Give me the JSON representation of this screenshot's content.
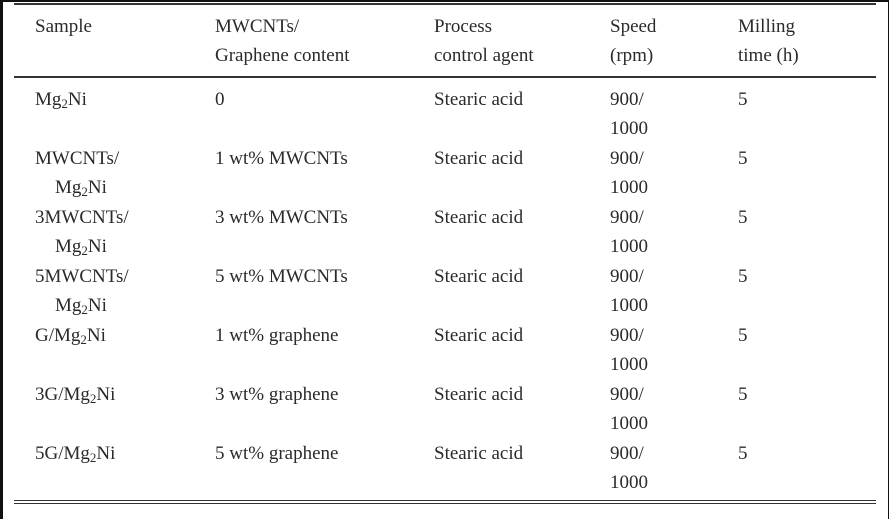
{
  "headers": [
    [
      "Sample"
    ],
    [
      "MWCNTs/",
      "Graphene content"
    ],
    [
      "Process",
      "control agent"
    ],
    [
      "Speed",
      "(rpm)"
    ],
    [
      "Milling",
      "time (h)"
    ]
  ],
  "rows": [
    {
      "sample": {
        "line1": "",
        "pre": "Mg",
        "sub": "2",
        "post": "Ni"
      },
      "content": "0",
      "agent": "Stearic acid",
      "speed": [
        "900/",
        "1000"
      ],
      "time": "5"
    },
    {
      "sample": {
        "line1": "MWCNTs/",
        "pre": "Mg",
        "sub": "2",
        "post": "Ni"
      },
      "content": "1 wt% MWCNTs",
      "agent": "Stearic acid",
      "speed": [
        "900/",
        "1000"
      ],
      "time": "5"
    },
    {
      "sample": {
        "line1": "3MWCNTs/",
        "pre": "Mg",
        "sub": "2",
        "post": "Ni"
      },
      "content": "3 wt% MWCNTs",
      "agent": "Stearic acid",
      "speed": [
        "900/",
        "1000"
      ],
      "time": "5"
    },
    {
      "sample": {
        "line1": "5MWCNTs/",
        "pre": "Mg",
        "sub": "2",
        "post": "Ni"
      },
      "content": "5 wt% MWCNTs",
      "agent": "Stearic acid",
      "speed": [
        "900/",
        "1000"
      ],
      "time": "5"
    },
    {
      "sample": {
        "line1": "",
        "pre": "G/Mg",
        "sub": "2",
        "post": "Ni"
      },
      "content": "1 wt% graphene",
      "agent": "Stearic acid",
      "speed": [
        "900/",
        "1000"
      ],
      "time": "5"
    },
    {
      "sample": {
        "line1": "",
        "pre": "3G/Mg",
        "sub": "2",
        "post": "Ni"
      },
      "content": "3 wt% graphene",
      "agent": "Stearic acid",
      "speed": [
        "900/",
        "1000"
      ],
      "time": "5"
    },
    {
      "sample": {
        "line1": "",
        "pre": "5G/Mg",
        "sub": "2",
        "post": "Ni"
      },
      "content": "5 wt% graphene",
      "agent": "Stearic acid",
      "speed": [
        "900/",
        "1000"
      ],
      "time": "5"
    }
  ]
}
